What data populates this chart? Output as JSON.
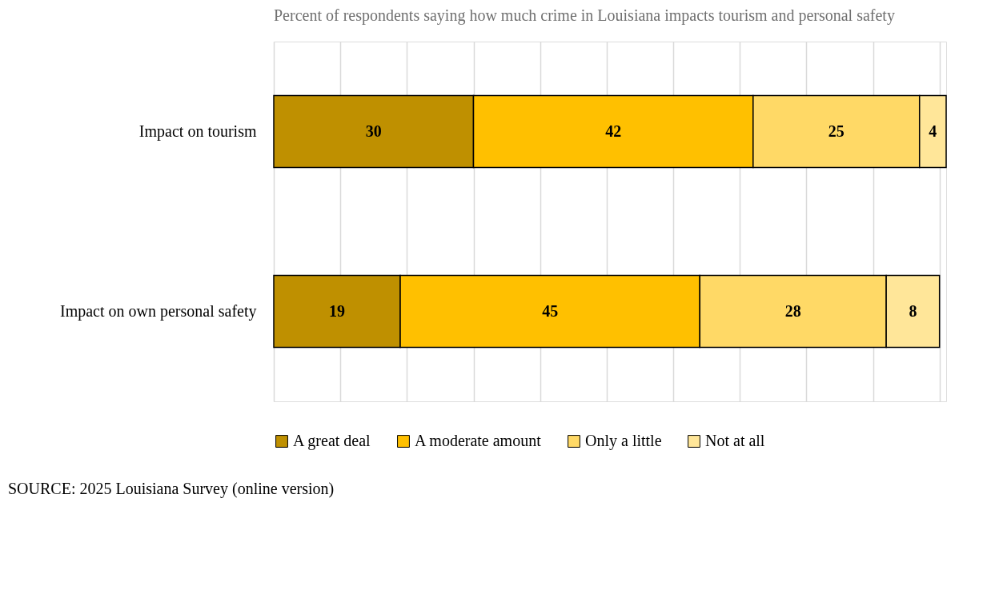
{
  "chart_data": {
    "type": "bar",
    "orientation": "horizontal",
    "stacked": true,
    "title": "Percent of respondents saying how much crime in Louisiana impacts tourism and personal safety",
    "categories": [
      "Impact on tourism",
      "Impact on own personal safety"
    ],
    "series": [
      {
        "name": "A great deal",
        "color": "#bf9000",
        "values": [
          30,
          19
        ]
      },
      {
        "name": "A moderate amount",
        "color": "#ffc000",
        "values": [
          42,
          45
        ]
      },
      {
        "name": "Only a little",
        "color": "#ffd966",
        "values": [
          25,
          28
        ]
      },
      {
        "name": "Not at all",
        "color": "#ffe699",
        "values": [
          4,
          8
        ]
      }
    ],
    "xlim": [
      0,
      101
    ],
    "xticks": [
      {
        "value": 0,
        "label": null
      },
      {
        "value": 10,
        "label": null
      },
      {
        "value": 20,
        "label": null
      },
      {
        "value": 30,
        "label": null
      },
      {
        "value": 40,
        "label": null
      },
      {
        "value": 50,
        "label": null
      },
      {
        "value": 60,
        "label": null
      },
      {
        "value": 70,
        "label": null
      },
      {
        "value": 80,
        "label": null
      },
      {
        "value": 90,
        "label": null
      },
      {
        "value": 100,
        "label": null
      }
    ],
    "tick_labels": "y",
    "grid": "x",
    "legend": "bottom",
    "data_labels": true,
    "annotations": [
      "SOURCE: 2025 Louisiana Survey (online version)"
    ]
  }
}
